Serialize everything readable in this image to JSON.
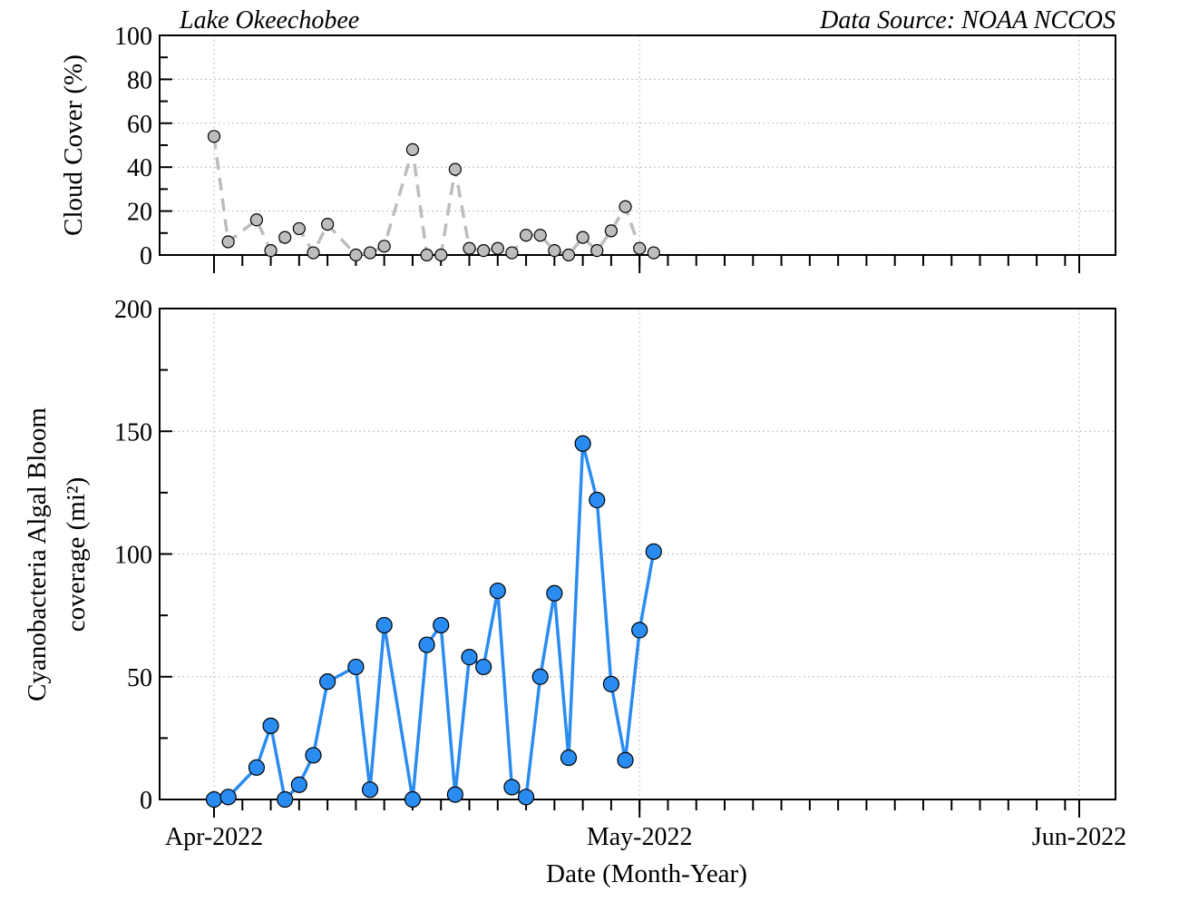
{
  "header": {
    "location_label": "Lake Okeechobee",
    "source_label": "Data Source: NOAA NCCOS"
  },
  "colors": {
    "cloud_series": "#bdbdbd",
    "cloud_marker": "#bdbdbd",
    "bloom_series": "#2a8cf0",
    "bloom_marker": "#2a8cf0",
    "grid": "#bdbdbd"
  },
  "chart_data": [
    {
      "type": "line",
      "title": "",
      "ylabel": "Cloud Cover (%)",
      "xlabel": "",
      "xlim": [
        "2022-03-26",
        "2022-06-03"
      ],
      "ylim": [
        0,
        100
      ],
      "yticks": [
        0,
        20,
        40,
        60,
        80,
        100
      ],
      "xticks": [
        "2022-04-01",
        "2022-05-01",
        "2022-06-01"
      ],
      "grid": true,
      "line_style": "dashed",
      "series": [
        {
          "x": [
            "2022-04-01",
            "2022-04-02",
            "2022-04-04",
            "2022-04-05",
            "2022-04-06",
            "2022-04-07",
            "2022-04-08",
            "2022-04-09",
            "2022-04-11",
            "2022-04-12",
            "2022-04-13",
            "2022-04-15",
            "2022-04-16",
            "2022-04-17",
            "2022-04-18",
            "2022-04-19",
            "2022-04-20",
            "2022-04-21",
            "2022-04-22",
            "2022-04-23",
            "2022-04-24",
            "2022-04-25",
            "2022-04-26",
            "2022-04-27",
            "2022-04-28",
            "2022-04-29",
            "2022-04-30",
            "2022-05-01",
            "2022-05-02"
          ],
          "values": [
            54,
            6,
            16,
            2,
            8,
            12,
            1,
            14,
            0,
            1,
            4,
            48,
            0,
            0,
            39,
            3,
            2,
            3,
            1,
            9,
            9,
            2,
            0,
            8,
            2,
            11,
            22,
            3,
            1
          ]
        }
      ]
    },
    {
      "type": "line",
      "title": "",
      "ylabel": "Cyanobacteria Algal Bloom coverage (mi²)",
      "ylabel_lines": [
        "Cyanobacteria Algal Bloom",
        "coverage (mi²)"
      ],
      "xlabel": "Date (Month-Year)",
      "xlim": [
        "2022-03-26",
        "2022-06-03"
      ],
      "ylim": [
        0,
        200
      ],
      "yticks": [
        0,
        50,
        100,
        150,
        200
      ],
      "xticks": [
        "2022-04-01",
        "2022-05-01",
        "2022-06-01"
      ],
      "xtick_labels": [
        "Apr-2022",
        "May-2022",
        "Jun-2022"
      ],
      "grid": true,
      "line_style": "solid",
      "series": [
        {
          "x": [
            "2022-04-01",
            "2022-04-02",
            "2022-04-04",
            "2022-04-05",
            "2022-04-06",
            "2022-04-07",
            "2022-04-08",
            "2022-04-09",
            "2022-04-11",
            "2022-04-12",
            "2022-04-13",
            "2022-04-15",
            "2022-04-16",
            "2022-04-17",
            "2022-04-18",
            "2022-04-19",
            "2022-04-20",
            "2022-04-21",
            "2022-04-22",
            "2022-04-23",
            "2022-04-24",
            "2022-04-25",
            "2022-04-26",
            "2022-04-27",
            "2022-04-28",
            "2022-04-29",
            "2022-04-30",
            "2022-05-01",
            "2022-05-02"
          ],
          "values": [
            0,
            1,
            13,
            30,
            0,
            6,
            18,
            48,
            54,
            4,
            71,
            0,
            63,
            71,
            2,
            58,
            54,
            85,
            5,
            1,
            50,
            84,
            17,
            145,
            122,
            47,
            16,
            69,
            101
          ]
        }
      ]
    }
  ]
}
